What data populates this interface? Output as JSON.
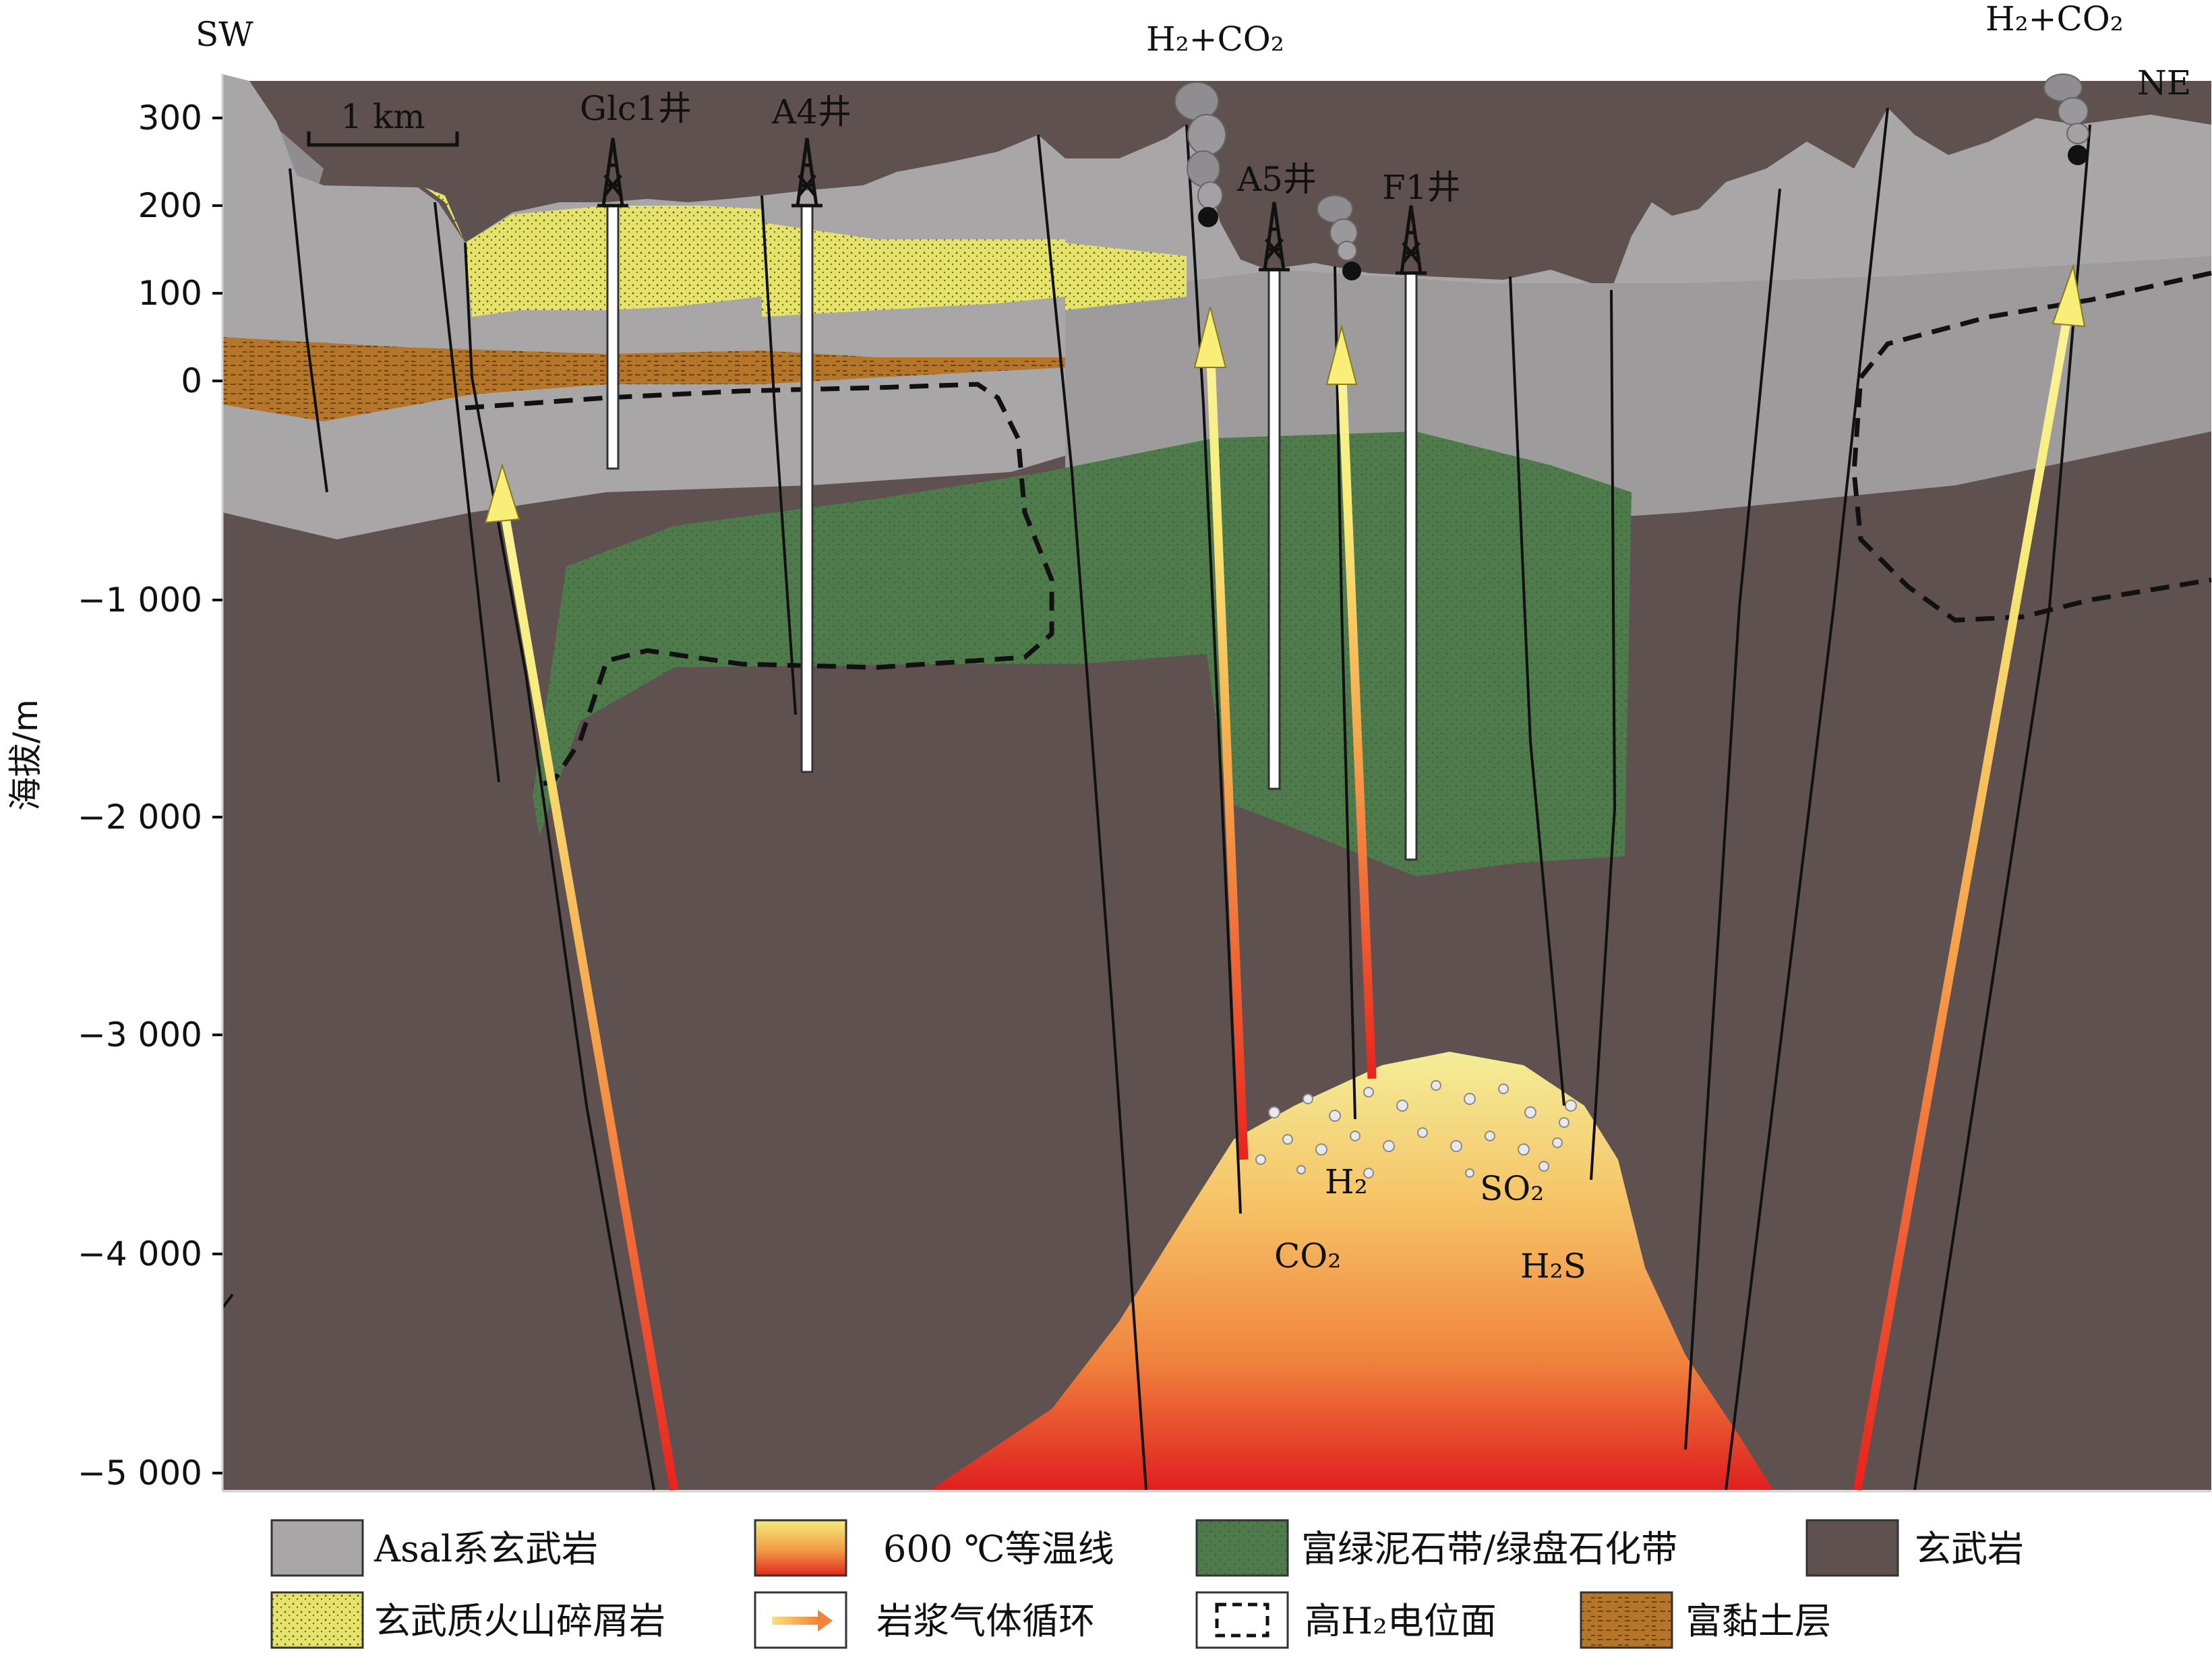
{
  "direction": {
    "left": "SW",
    "right": "NE"
  },
  "scale_bar": "1 km",
  "y_axis": {
    "label": "海拔/m",
    "ticks": [
      "300",
      "200",
      "100",
      "0",
      "−1 000",
      "−2 000",
      "−3 000",
      "−4 000",
      "−5 000"
    ]
  },
  "wells": [
    "Glc1井",
    "A4井",
    "A5井",
    "F1井"
  ],
  "emissions": [
    "H₂+CO₂",
    "H₂+CO₂"
  ],
  "magma_gases": [
    "H₂",
    "CO₂",
    "SO₂",
    "H₂S"
  ],
  "legend": [
    {
      "label": "Asal系玄武岩",
      "swatch": "asal-basalt"
    },
    {
      "label": "600 ℃等温线",
      "swatch": "isotherm"
    },
    {
      "label": "富绿泥石带/绿盘石化带",
      "swatch": "chlorite-zone"
    },
    {
      "label": "玄武岩",
      "swatch": "basalt"
    },
    {
      "label": "玄武质火山碎屑岩",
      "swatch": "pyroclastic"
    },
    {
      "label": "岩浆气体循环",
      "swatch": "gas-arrow"
    },
    {
      "label": "高H₂电位面",
      "swatch": "dashed-box"
    },
    {
      "label": "富黏土层",
      "swatch": "clay"
    }
  ],
  "colors": {
    "basalt": "#5e5150",
    "asal_basalt": "#a9a6a8",
    "surface_gray": "#8f8d8f",
    "chlorite": "#4f7a4c",
    "pyroclastic": "#e8e56a",
    "clay": "#b5762a",
    "magma_top": "#f3e98a",
    "magma_bottom": "#e01f1f"
  }
}
